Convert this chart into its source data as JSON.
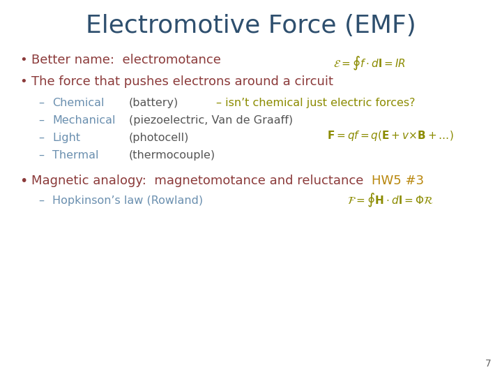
{
  "title": "Electromotive Force (EMF)",
  "title_color": "#2E4F6E",
  "title_fontsize": 26,
  "background_color": "#FFFFFF",
  "page_num": "7",
  "bullet_color": "#8B3A3A",
  "sub_color": "#6A8FAF",
  "gray_color": "#555555",
  "olive_color": "#8B8B00",
  "hw_color": "#B8860B",
  "eq_color": "#8B8B00",
  "eq1": "$\\mathcal{E} = \\oint f \\cdot d\\mathbf{l} = IR$",
  "eq2": "$\\mathbf{F} = qf = q(\\mathbf{E} + v{\\times}\\mathbf{B} + \\ldots)$",
  "eq3": "$\\mathcal{F} = \\oint \\mathbf{H} \\cdot d\\mathbf{l} = \\Phi\\mathcal{R}$"
}
